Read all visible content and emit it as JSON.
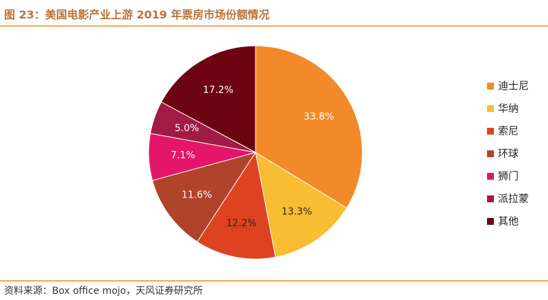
{
  "figure": {
    "title": "图 23：美国电影产业上游 2019 年票房市场份额情况",
    "source": "资料来源：Box office mojo，天风证券研究所"
  },
  "colors": {
    "accent": "#b9733a",
    "rule": "#f0a64e",
    "label_light": "#ffffff",
    "label_dark": "#262626"
  },
  "chart_data": {
    "type": "pie",
    "title": "",
    "start_angle_deg": 0,
    "direction": "clockwise",
    "legend_position": "right",
    "slices": [
      {
        "name": "迪士尼",
        "value": 33.8,
        "label": "33.8%",
        "color": "#f28a2a"
      },
      {
        "name": "华纳",
        "value": 13.3,
        "label": "13.3%",
        "color": "#f8bd33"
      },
      {
        "name": "索尼",
        "value": 12.2,
        "label": "12.2%",
        "color": "#dd4320"
      },
      {
        "name": "环球",
        "value": 11.6,
        "label": "11.6%",
        "color": "#b0432c"
      },
      {
        "name": "狮门",
        "value": 7.1,
        "label": "7.1%",
        "color": "#e41669"
      },
      {
        "name": "派拉蒙",
        "value": 5.0,
        "label": "5.0%",
        "color": "#a11c45"
      },
      {
        "name": "其他",
        "value": 17.2,
        "label": "17.2%",
        "color": "#6c0511"
      }
    ]
  }
}
